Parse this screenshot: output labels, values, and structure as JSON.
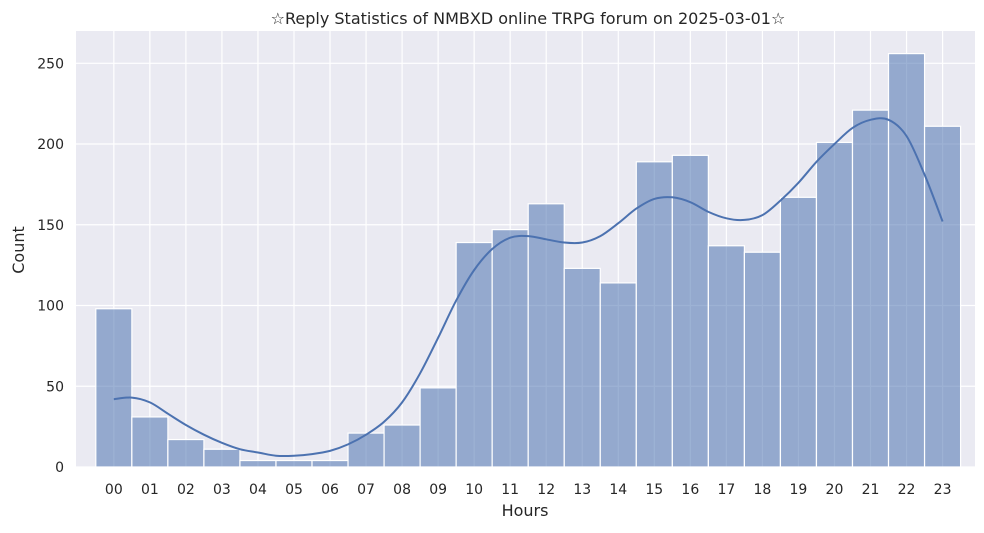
{
  "chart_data": {
    "type": "bar",
    "title": "☆Reply Statistics of NMBXD online TRPG forum on 2025-03-01☆",
    "xlabel": "Hours",
    "ylabel": "Count",
    "categories": [
      "00",
      "01",
      "02",
      "03",
      "04",
      "05",
      "06",
      "07",
      "08",
      "09",
      "10",
      "11",
      "12",
      "13",
      "14",
      "15",
      "16",
      "17",
      "18",
      "19",
      "20",
      "21",
      "22",
      "23"
    ],
    "values": [
      98,
      31,
      17,
      11,
      4,
      4,
      4,
      21,
      26,
      49,
      139,
      147,
      163,
      123,
      114,
      189,
      193,
      137,
      133,
      167,
      201,
      221,
      256,
      211
    ],
    "kde": {
      "x": [
        0,
        0.5,
        1,
        1.5,
        2,
        2.5,
        3,
        3.5,
        4,
        4.5,
        5,
        5.5,
        6,
        6.5,
        7,
        7.5,
        8,
        8.5,
        9,
        9.5,
        10,
        10.5,
        11,
        11.5,
        12,
        12.5,
        13,
        13.5,
        14,
        14.5,
        15,
        15.5,
        16,
        16.5,
        17,
        17.5,
        18,
        18.5,
        19,
        19.5,
        20,
        20.5,
        21,
        21.5,
        22,
        22.5,
        23
      ],
      "y": [
        42,
        43,
        40,
        33,
        26,
        20,
        15,
        11,
        9,
        7,
        7,
        8,
        10,
        14,
        20,
        28,
        40,
        58,
        80,
        103,
        122,
        135,
        142,
        143,
        141,
        139,
        139,
        143,
        151,
        160,
        166,
        167,
        164,
        158,
        154,
        153,
        156,
        165,
        176,
        189,
        200,
        210,
        215,
        215,
        205,
        181,
        152
      ]
    },
    "yticks": [
      0,
      50,
      100,
      150,
      200,
      250
    ],
    "ylim": [
      0,
      270
    ],
    "xlim": [
      -1.05,
      23.9
    ],
    "grid": true,
    "legend": "none",
    "colors": {
      "bar_fill": "#4c72b0",
      "bar_opacity": 0.55,
      "bar_stroke": "#ffffff",
      "kde_line": "#4c72b0",
      "plot_background": "#eaeaf2",
      "grid": "#ffffff"
    }
  }
}
